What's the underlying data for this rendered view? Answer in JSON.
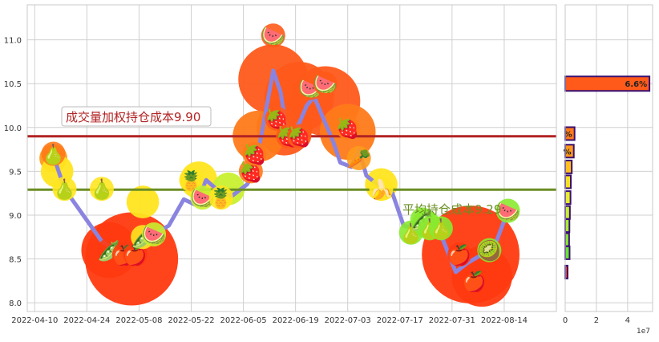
{
  "chart_data": [
    {
      "type": "line",
      "x_ticks": [
        "2022-04-10",
        "2022-04-24",
        "2022-05-08",
        "2022-05-22",
        "2022-06-05",
        "2022-06-19",
        "2022-07-03",
        "2022-07-17",
        "2022-07-31",
        "2022-08-14"
      ],
      "y_ticks": [
        "8.0",
        "8.5",
        "9.0",
        "9.5",
        "10.0",
        "10.5",
        "11.0"
      ],
      "ylim": [
        7.9,
        11.4
      ],
      "xlim": [
        "2022-04-08",
        "2022-08-28"
      ],
      "grid": true,
      "series": [
        {
          "x": [
            "2022-04-15",
            "2022-04-18",
            "2022-04-28",
            "2022-05-02",
            "2022-05-05",
            "2022-05-09",
            "2022-05-12",
            "2022-05-16",
            "2022-05-20",
            "2022-05-23",
            "2022-05-26",
            "2022-05-30",
            "2022-06-02",
            "2022-06-06",
            "2022-06-08",
            "2022-06-10",
            "2022-06-13",
            "2022-06-15",
            "2022-06-17",
            "2022-06-20",
            "2022-06-22",
            "2022-06-24",
            "2022-06-27",
            "2022-06-29",
            "2022-07-01",
            "2022-07-04",
            "2022-07-06",
            "2022-07-08",
            "2022-07-11",
            "2022-07-13",
            "2022-07-15",
            "2022-07-18",
            "2022-07-21",
            "2022-07-25",
            "2022-07-28",
            "2022-08-01",
            "2022-08-04",
            "2022-08-08",
            "2022-08-11",
            "2022-08-15"
          ],
          "values": [
            9.68,
            9.3,
            8.7,
            8.6,
            8.55,
            8.62,
            8.78,
            8.88,
            9.18,
            9.12,
            9.4,
            9.25,
            9.22,
            9.35,
            9.5,
            9.95,
            10.65,
            10.4,
            9.85,
            10.05,
            10.25,
            10.35,
            10.05,
            9.85,
            9.6,
            9.55,
            9.75,
            9.45,
            9.35,
            9.3,
            9.25,
            8.88,
            8.85,
            8.8,
            8.78,
            8.35,
            8.45,
            8.55,
            8.6,
            9.05
          ]
        }
      ],
      "hlines": [
        {
          "label": "成交量加权持仓成本9.90",
          "value": 9.9,
          "color": "#b22222"
        },
        {
          "label": "平均持仓成本9.29",
          "value": 9.29,
          "color": "#6b8e23"
        }
      ]
    },
    {
      "type": "bar",
      "orientation": "horizontal",
      "x_ticks": [
        "0",
        "2",
        "4"
      ],
      "xlim": [
        0,
        5.6
      ],
      "x_multiplier": "1e7",
      "bars": [
        {
          "price": 10.5,
          "value": 5.4,
          "label": "6.6%",
          "color": "#ff5a1a"
        },
        {
          "price": 9.93,
          "value": 0.6,
          "label": "%",
          "color": "#ff7a1a"
        },
        {
          "price": 9.73,
          "value": 0.55,
          "label": "%",
          "color": "#ff9a1a"
        },
        {
          "price": 9.55,
          "value": 0.42,
          "label": "",
          "color": "#ffc020"
        },
        {
          "price": 9.38,
          "value": 0.36,
          "label": "",
          "color": "#f5e028"
        },
        {
          "price": 9.2,
          "value": 0.34,
          "label": "",
          "color": "#e6ee30"
        },
        {
          "price": 9.03,
          "value": 0.3,
          "label": "",
          "color": "#c8f030"
        },
        {
          "price": 8.88,
          "value": 0.27,
          "label": "",
          "color": "#a8ee30"
        },
        {
          "price": 8.72,
          "value": 0.25,
          "label": "",
          "color": "#88ea30"
        },
        {
          "price": 8.57,
          "value": 0.28,
          "label": "",
          "color": "#66e630"
        },
        {
          "price": 8.35,
          "value": 0.15,
          "label": "",
          "color": "#ff3a10"
        }
      ]
    }
  ],
  "colors": {
    "line": "#8a84e0",
    "weighted": "#b22222",
    "average": "#6b8e23"
  },
  "markers": [
    {
      "name": "radish",
      "d": "2022-04-15",
      "v": 9.7,
      "glyph": "🍐",
      "bg": "#ff7a1a"
    },
    {
      "name": "pear",
      "d": "2022-04-18",
      "v": 9.3,
      "glyph": "🍐",
      "bg": "#ffe520"
    },
    {
      "name": "pear",
      "d": "2022-04-28",
      "v": 9.3,
      "glyph": "🍐",
      "bg": "#ffe520"
    },
    {
      "name": "pea-pod",
      "d": "2022-04-30",
      "v": 8.6,
      "glyph": "🫛",
      "bg": "#ff3a10"
    },
    {
      "name": "apple",
      "d": "2022-05-04",
      "v": 8.55,
      "glyph": "🍎",
      "bg": "#ff3a10"
    },
    {
      "name": "apple",
      "d": "2022-05-07",
      "v": 8.55,
      "glyph": "🍎",
      "bg": "#ff3a10"
    },
    {
      "name": "pea-pod",
      "d": "2022-05-09",
      "v": 8.75,
      "glyph": "🫛",
      "bg": "#ffe520"
    },
    {
      "name": "watermelon",
      "d": "2022-05-12",
      "v": 8.78,
      "glyph": "🍉",
      "bg": "#c8f030"
    },
    {
      "name": "pineapple",
      "d": "2022-05-22",
      "v": 9.4,
      "glyph": "🍍",
      "bg": "#ffe520"
    },
    {
      "name": "watermelon",
      "d": "2022-05-25",
      "v": 9.2,
      "glyph": "🍉",
      "bg": "#c8f030"
    },
    {
      "name": "pineapple",
      "d": "2022-05-30",
      "v": 9.2,
      "glyph": "🍍",
      "bg": "#ffe520"
    },
    {
      "name": "radish",
      "d": "2022-06-07",
      "v": 9.5,
      "glyph": "🍓",
      "bg": "#ff7a1a"
    },
    {
      "name": "strawberry",
      "d": "2022-06-08",
      "v": 9.7,
      "glyph": "🍓",
      "bg": "#ff7a1a"
    },
    {
      "name": "watermelon",
      "d": "2022-06-13",
      "v": 11.05,
      "glyph": "🍉",
      "bg": "#ff5a1a"
    },
    {
      "name": "strawberry",
      "d": "2022-06-14",
      "v": 10.1,
      "glyph": "🍓",
      "bg": "#ff5a1a"
    },
    {
      "name": "strawberry",
      "d": "2022-06-17",
      "v": 9.9,
      "glyph": "🍓",
      "bg": "#ff5a1a"
    },
    {
      "name": "strawberry",
      "d": "2022-06-20",
      "v": 9.9,
      "glyph": "🍓",
      "bg": "#ff5a1a"
    },
    {
      "name": "watermelon",
      "d": "2022-06-23",
      "v": 10.45,
      "glyph": "🍉",
      "bg": "#ff5a1a"
    },
    {
      "name": "watermelon",
      "d": "2022-06-27",
      "v": 10.5,
      "glyph": "🍉",
      "bg": "#ff5a1a"
    },
    {
      "name": "strawberry",
      "d": "2022-07-03",
      "v": 10.0,
      "glyph": "🍓",
      "bg": "#ff7a1a"
    },
    {
      "name": "carrot",
      "d": "2022-07-06",
      "v": 9.65,
      "glyph": "🥕",
      "bg": "#ff9a1a"
    },
    {
      "name": "banana",
      "d": "2022-07-12",
      "v": 9.3,
      "glyph": "🍌",
      "bg": "#ffe520"
    },
    {
      "name": "pear",
      "d": "2022-07-20",
      "v": 8.8,
      "glyph": "🍐",
      "bg": "#88ea30"
    },
    {
      "name": "pea-pod",
      "d": "2022-07-23",
      "v": 8.95,
      "glyph": "🫛",
      "bg": "#88ea30"
    },
    {
      "name": "pear",
      "d": "2022-07-25",
      "v": 8.85,
      "glyph": "🍐",
      "bg": "#88ea30"
    },
    {
      "name": "pear",
      "d": "2022-07-28",
      "v": 8.85,
      "glyph": "🍐",
      "bg": "#88ea30"
    },
    {
      "name": "apple",
      "d": "2022-08-02",
      "v": 8.55,
      "glyph": "🍎",
      "bg": "#ff3a10"
    },
    {
      "name": "apple",
      "d": "2022-08-06",
      "v": 8.25,
      "glyph": "🍎",
      "bg": "#ff3a10"
    },
    {
      "name": "kiwi",
      "d": "2022-08-10",
      "v": 8.6,
      "glyph": "🥝",
      "bg": "#88ea30"
    },
    {
      "name": "watermelon",
      "d": "2022-08-15",
      "v": 9.05,
      "glyph": "🍉",
      "bg": "#88ea30"
    }
  ],
  "blobs": [
    {
      "d": "2022-05-06",
      "v": 8.5,
      "s": 1.0,
      "c": "#ff3a10"
    },
    {
      "d": "2022-04-30",
      "v": 8.6,
      "s": 0.6,
      "c": "#ff3a10"
    },
    {
      "d": "2022-06-13",
      "v": 10.55,
      "s": 0.75,
      "c": "#ff5a1a"
    },
    {
      "d": "2022-06-20",
      "v": 10.35,
      "s": 0.75,
      "c": "#ff5a1a"
    },
    {
      "d": "2022-06-27",
      "v": 10.3,
      "s": 0.75,
      "c": "#ff5a1a"
    },
    {
      "d": "2022-06-16",
      "v": 10.0,
      "s": 0.6,
      "c": "#ff5a1a"
    },
    {
      "d": "2022-06-09",
      "v": 9.9,
      "s": 0.55,
      "c": "#ff7a1a"
    },
    {
      "d": "2022-07-03",
      "v": 9.95,
      "s": 0.6,
      "c": "#ff7a1a"
    },
    {
      "d": "2022-08-05",
      "v": 8.55,
      "s": 1.05,
      "c": "#ff3a10"
    },
    {
      "d": "2022-08-08",
      "v": 8.3,
      "s": 0.65,
      "c": "#ff3a10"
    },
    {
      "d": "2022-04-15",
      "v": 9.65,
      "s": 0.3,
      "c": "#ff9a1a"
    },
    {
      "d": "2022-04-16",
      "v": 9.5,
      "s": 0.35,
      "c": "#ffe520"
    },
    {
      "d": "2022-05-09",
      "v": 9.15,
      "s": 0.35,
      "c": "#ffe520"
    },
    {
      "d": "2022-05-24",
      "v": 9.4,
      "s": 0.4,
      "c": "#ffe520"
    },
    {
      "d": "2022-06-01",
      "v": 9.3,
      "s": 0.35,
      "c": "#c8f030"
    },
    {
      "d": "2022-07-12",
      "v": 9.35,
      "s": 0.35,
      "c": "#ffe520"
    },
    {
      "d": "2022-07-24",
      "v": 8.9,
      "s": 0.3,
      "c": "#88ea30"
    }
  ]
}
